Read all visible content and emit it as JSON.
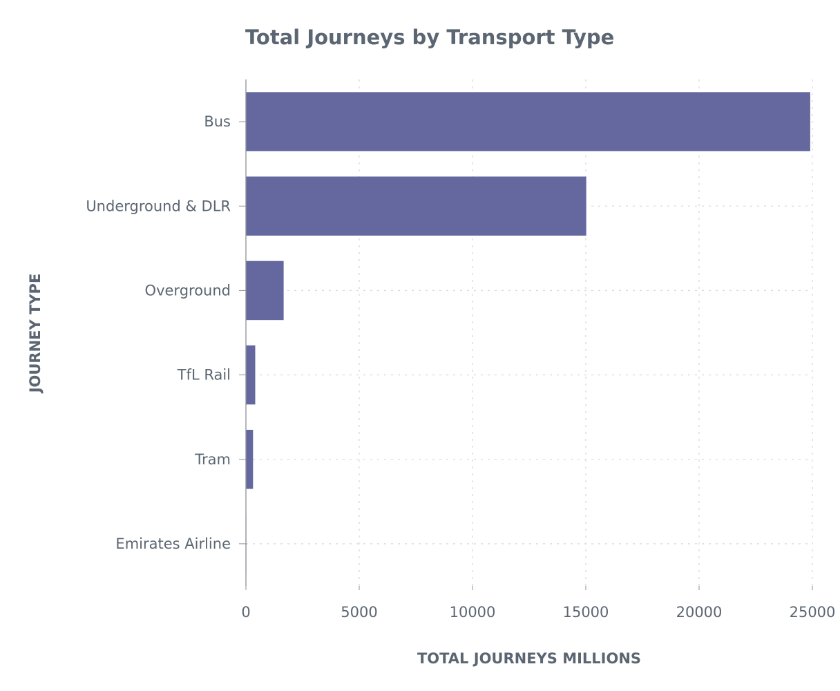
{
  "chart_data": {
    "type": "bar",
    "orientation": "horizontal",
    "title": "Total Journeys by Transport Type",
    "xlabel": "TOTAL JOURNEYS MILLIONS",
    "ylabel": "JOURNEY TYPE",
    "categories": [
      "Bus",
      "Underground & DLR",
      "Overground",
      "TfL Rail",
      "Tram",
      "Emirates Airline"
    ],
    "values": [
      24905,
      15020,
      1665,
      411,
      314,
      15
    ],
    "xlim": [
      0,
      25000
    ],
    "xticks": [
      "0",
      "5000",
      "10000",
      "15000",
      "20000",
      "25000"
    ],
    "bar_color": "#65689f",
    "grid": true
  }
}
